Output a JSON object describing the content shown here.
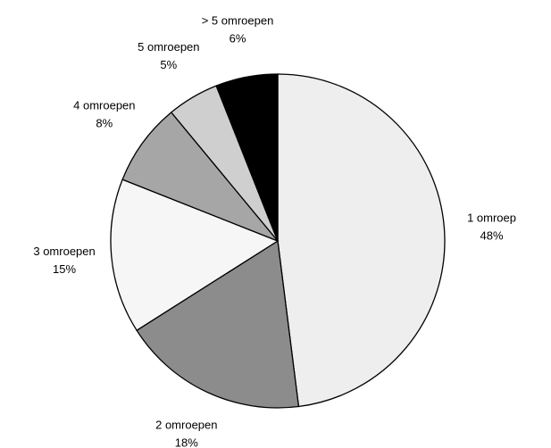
{
  "chart_data": {
    "type": "pie",
    "categories": [
      "1 omroep",
      "2 omroepen",
      "3 omroepen",
      "4 omroepen",
      "5 omroepen",
      "> 5 omroepen"
    ],
    "values": [
      48,
      18,
      15,
      8,
      5,
      6
    ],
    "value_labels": [
      "48%",
      "18%",
      "15%",
      "8%",
      "5%",
      "6%"
    ],
    "colors": [
      "#eeeeee",
      "#8c8c8c",
      "#f6f6f6",
      "#a6a6a6",
      "#cfcfcf",
      "#000000"
    ]
  }
}
